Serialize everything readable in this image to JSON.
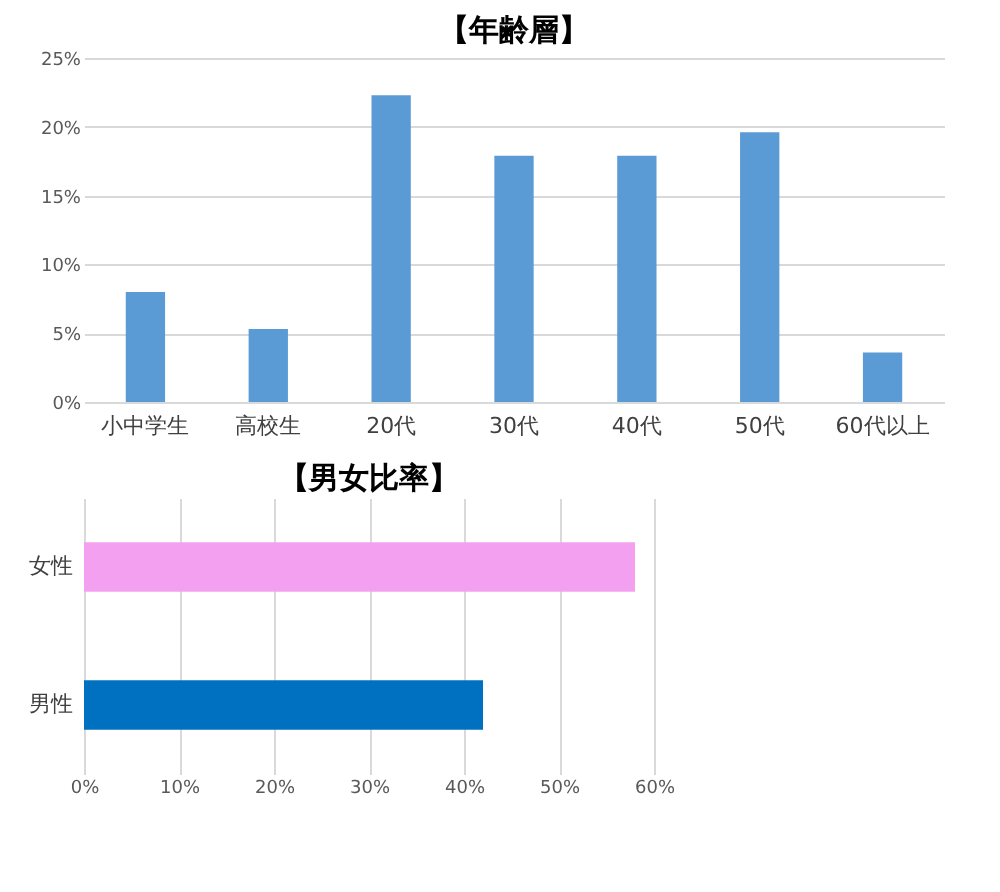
{
  "chart_data": [
    {
      "type": "bar",
      "title": "【年齢層】",
      "categories": [
        "小中学生",
        "高校生",
        "20代",
        "30代",
        "40代",
        "50代",
        "60代以上"
      ],
      "values": [
        8.0,
        5.3,
        22.3,
        17.9,
        17.9,
        19.6,
        3.6
      ],
      "color": "#5b9bd5",
      "ylim": [
        0,
        25
      ],
      "yticks": [
        {
          "value": 0,
          "label": "0%"
        },
        {
          "value": 5,
          "label": "5%"
        },
        {
          "value": 10,
          "label": "10%"
        },
        {
          "value": 15,
          "label": "15%"
        },
        {
          "value": 20,
          "label": "20%"
        },
        {
          "value": 25,
          "label": "25%"
        }
      ],
      "grid": "y"
    },
    {
      "type": "bar",
      "orientation": "horizontal",
      "title": "【男女比率】",
      "categories": [
        "女性",
        "男性"
      ],
      "values": [
        58,
        42
      ],
      "colors": [
        "#f4a0f0",
        "#0070c0"
      ],
      "xlim": [
        0,
        60
      ],
      "xticks": [
        {
          "value": 0,
          "label": "0%"
        },
        {
          "value": 10,
          "label": "10%"
        },
        {
          "value": 20,
          "label": "20%"
        },
        {
          "value": 30,
          "label": "30%"
        },
        {
          "value": 40,
          "label": "40%"
        },
        {
          "value": 50,
          "label": "50%"
        },
        {
          "value": 60,
          "label": "60%"
        }
      ],
      "grid": "x"
    }
  ]
}
